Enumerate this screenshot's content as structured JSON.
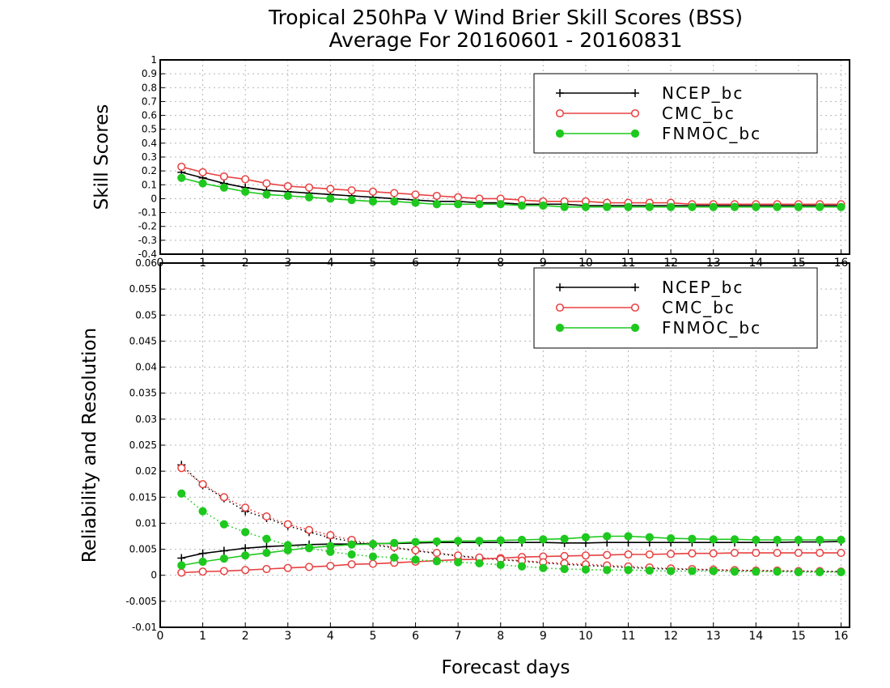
{
  "title_line1": "Tropical 250hPa V Wind Brier Skill Scores (BSS)",
  "title_line2": "Average For 20160601 - 20160831",
  "xlabel": "Forecast days",
  "colors": {
    "NCEP_bc": "#000000",
    "CMC_bc": "#e84040",
    "FNMOC_bc": "#1ec81e"
  },
  "chart_data": [
    {
      "type": "line",
      "ylabel": "Skill Scores",
      "xlim": [
        0,
        16.2
      ],
      "ylim": [
        -0.4,
        1
      ],
      "yticks": [
        "-0.4",
        "-0.3",
        "-0.2",
        "-0.1",
        "0",
        "0.1",
        "0.2",
        "0.3",
        "0.4",
        "0.5",
        "0.6",
        "0.7",
        "0.8",
        "0.9",
        "1"
      ],
      "xticks": [
        "0",
        "1",
        "2",
        "3",
        "4",
        "5",
        "6",
        "7",
        "8",
        "9",
        "10",
        "11",
        "12",
        "13",
        "14",
        "15",
        "16"
      ],
      "grid": true,
      "legend": "top-right",
      "x": [
        0.5,
        1,
        1.5,
        2,
        2.5,
        3,
        3.5,
        4,
        4.5,
        5,
        5.5,
        6,
        6.5,
        7,
        7.5,
        8,
        8.5,
        9,
        9.5,
        10,
        10.5,
        11,
        11.5,
        12,
        12.5,
        13,
        13.5,
        14,
        14.5,
        15,
        15.5,
        16
      ],
      "series": [
        {
          "name": "NCEP_bc",
          "values": [
            0.19,
            0.15,
            0.11,
            0.08,
            0.06,
            0.05,
            0.04,
            0.03,
            0.02,
            0.01,
            0.0,
            -0.01,
            -0.02,
            -0.02,
            -0.03,
            -0.03,
            -0.04,
            -0.04,
            -0.04,
            -0.05,
            -0.05,
            -0.05,
            -0.05,
            -0.05,
            -0.05,
            -0.05,
            -0.05,
            -0.05,
            -0.05,
            -0.05,
            -0.05,
            -0.05
          ]
        },
        {
          "name": "CMC_bc",
          "values": [
            0.23,
            0.19,
            0.16,
            0.14,
            0.11,
            0.09,
            0.08,
            0.07,
            0.06,
            0.05,
            0.04,
            0.03,
            0.02,
            0.01,
            0.0,
            0.0,
            -0.01,
            -0.02,
            -0.02,
            -0.02,
            -0.03,
            -0.03,
            -0.03,
            -0.03,
            -0.04,
            -0.04,
            -0.04,
            -0.04,
            -0.04,
            -0.04,
            -0.04,
            -0.04
          ]
        },
        {
          "name": "FNMOC_bc",
          "values": [
            0.15,
            0.11,
            0.08,
            0.05,
            0.03,
            0.02,
            0.01,
            0.0,
            -0.01,
            -0.02,
            -0.02,
            -0.03,
            -0.04,
            -0.04,
            -0.04,
            -0.04,
            -0.05,
            -0.05,
            -0.06,
            -0.06,
            -0.06,
            -0.06,
            -0.06,
            -0.06,
            -0.06,
            -0.06,
            -0.06,
            -0.06,
            -0.06,
            -0.06,
            -0.06,
            -0.06
          ]
        }
      ]
    },
    {
      "type": "line",
      "ylabel": "Reliability and Resolution",
      "xlim": [
        0,
        16.2
      ],
      "ylim": [
        -0.01,
        0.06
      ],
      "yticks": [
        "-0.01",
        "-0.005",
        "0",
        "0.005",
        "0.01",
        "0.015",
        "0.02",
        "0.025",
        "0.03",
        "0.035",
        "0.04",
        "0.045",
        "0.05",
        "0.055",
        "0.06"
      ],
      "xticks": [
        "0",
        "1",
        "2",
        "3",
        "4",
        "5",
        "6",
        "7",
        "8",
        "9",
        "10",
        "11",
        "12",
        "13",
        "14",
        "15",
        "16"
      ],
      "grid": true,
      "legend": "top-right",
      "x": [
        0.5,
        1,
        1.5,
        2,
        2.5,
        3,
        3.5,
        4,
        4.5,
        5,
        5.5,
        6,
        6.5,
        7,
        7.5,
        8,
        8.5,
        9,
        9.5,
        10,
        10.5,
        11,
        11.5,
        12,
        12.5,
        13,
        13.5,
        14,
        14.5,
        15,
        15.5,
        16
      ],
      "series": [
        {
          "name": "NCEP_bc",
          "metric": "reliability",
          "values": [
            0.0033,
            0.0042,
            0.0047,
            0.0052,
            0.0055,
            0.0057,
            0.0059,
            0.006,
            0.006,
            0.0061,
            0.0061,
            0.0062,
            0.0063,
            0.0063,
            0.0063,
            0.0063,
            0.0063,
            0.0063,
            0.0062,
            0.0062,
            0.0063,
            0.0063,
            0.0063,
            0.0063,
            0.0063,
            0.0063,
            0.0063,
            0.0063,
            0.0063,
            0.0064,
            0.0064,
            0.0065
          ]
        },
        {
          "name": "NCEP_bc",
          "metric": "resolution",
          "values": [
            0.0212,
            0.0173,
            0.0148,
            0.0123,
            0.011,
            0.0095,
            0.0083,
            0.0072,
            0.0065,
            0.0058,
            0.0053,
            0.0047,
            0.0042,
            0.0037,
            0.0033,
            0.003,
            0.0027,
            0.0024,
            0.0021,
            0.0019,
            0.0017,
            0.0015,
            0.0013,
            0.0012,
            0.0011,
            0.001,
            0.0009,
            0.0009,
            0.0008,
            0.0008,
            0.0007,
            0.0007
          ]
        },
        {
          "name": "CMC_bc",
          "metric": "reliability",
          "values": [
            0.0005,
            0.0007,
            0.0008,
            0.001,
            0.0012,
            0.0014,
            0.0016,
            0.0018,
            0.0021,
            0.0022,
            0.0024,
            0.0026,
            0.0028,
            0.003,
            0.0031,
            0.0033,
            0.0035,
            0.0036,
            0.0037,
            0.0038,
            0.0039,
            0.004,
            0.004,
            0.0041,
            0.0042,
            0.0042,
            0.0043,
            0.0043,
            0.0043,
            0.0043,
            0.0043,
            0.0043
          ]
        },
        {
          "name": "CMC_bc",
          "metric": "resolution",
          "values": [
            0.0206,
            0.0175,
            0.015,
            0.013,
            0.0113,
            0.0098,
            0.0087,
            0.0077,
            0.0068,
            0.006,
            0.0054,
            0.0048,
            0.0043,
            0.0038,
            0.0034,
            0.0031,
            0.0028,
            0.0025,
            0.0023,
            0.0021,
            0.0019,
            0.0017,
            0.0015,
            0.0013,
            0.0012,
            0.0011,
            0.001,
            0.0009,
            0.0009,
            0.0008,
            0.0008,
            0.0007
          ]
        },
        {
          "name": "FNMOC_bc",
          "metric": "reliability",
          "values": [
            0.0019,
            0.0026,
            0.0032,
            0.0038,
            0.0043,
            0.0048,
            0.0053,
            0.0056,
            0.0059,
            0.006,
            0.0062,
            0.0064,
            0.0065,
            0.0066,
            0.0066,
            0.0067,
            0.0068,
            0.0069,
            0.007,
            0.0073,
            0.0075,
            0.0075,
            0.0073,
            0.0071,
            0.007,
            0.0069,
            0.0069,
            0.0068,
            0.0068,
            0.0068,
            0.0068,
            0.0068
          ]
        },
        {
          "name": "FNMOC_bc",
          "metric": "resolution",
          "values": [
            0.0157,
            0.0123,
            0.0098,
            0.0083,
            0.007,
            0.0058,
            0.0052,
            0.0045,
            0.004,
            0.0036,
            0.0034,
            0.003,
            0.0027,
            0.0025,
            0.0023,
            0.002,
            0.0017,
            0.0014,
            0.0012,
            0.0011,
            0.001,
            0.001,
            0.0009,
            0.0008,
            0.0008,
            0.0008,
            0.0007,
            0.0007,
            0.0007,
            0.0006,
            0.0006,
            0.0006
          ]
        }
      ]
    }
  ]
}
